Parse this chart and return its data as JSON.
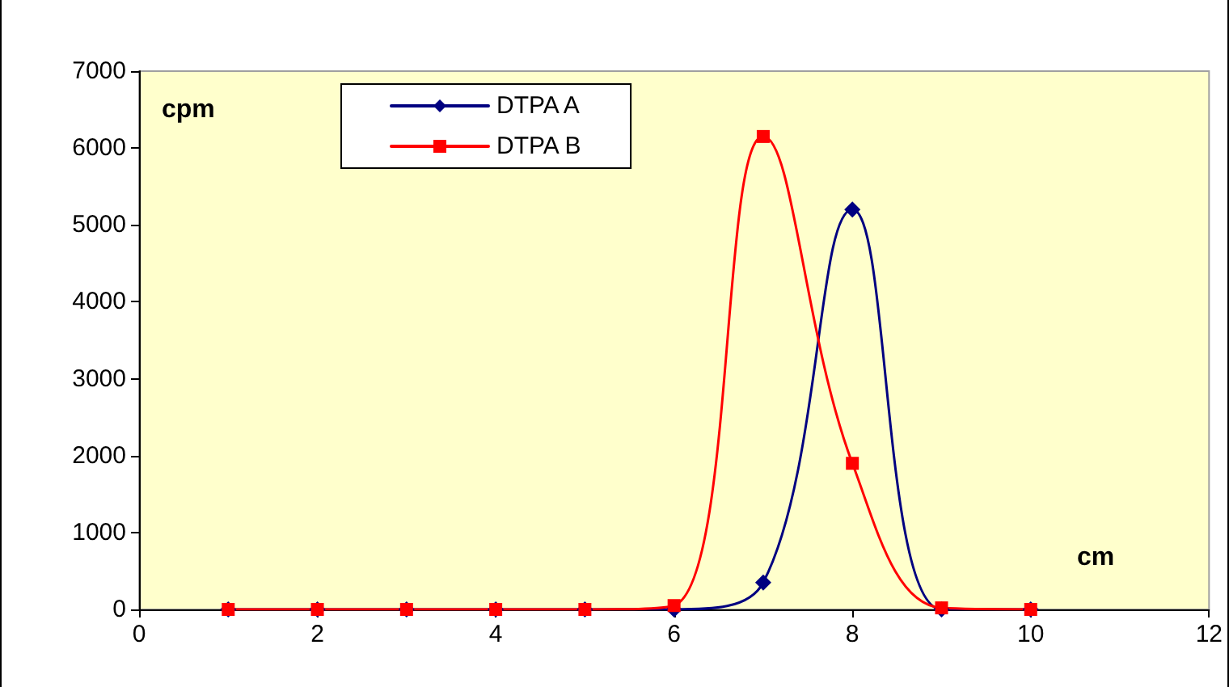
{
  "chart_data": {
    "type": "line",
    "xlabel": "cm",
    "ylabel": "cpm",
    "x": [
      1,
      2,
      3,
      4,
      5,
      6,
      7,
      8,
      9,
      10
    ],
    "series": [
      {
        "name": "DTPA A",
        "color": "#000080",
        "marker": "diamond",
        "values": [
          0,
          0,
          0,
          0,
          0,
          0,
          350,
          5200,
          0,
          0
        ]
      },
      {
        "name": "DTPA B",
        "color": "#ff0000",
        "marker": "square",
        "values": [
          0,
          0,
          0,
          0,
          0,
          50,
          6150,
          1900,
          20,
          0
        ]
      }
    ],
    "xlim": [
      0,
      12
    ],
    "xticks": [
      0,
      2,
      4,
      6,
      8,
      10,
      12
    ],
    "ylim": [
      0,
      7000
    ],
    "yticks": [
      0,
      1000,
      2000,
      3000,
      4000,
      5000,
      6000,
      7000
    ],
    "grid": false,
    "legend": "top left",
    "line_style": "solid"
  }
}
